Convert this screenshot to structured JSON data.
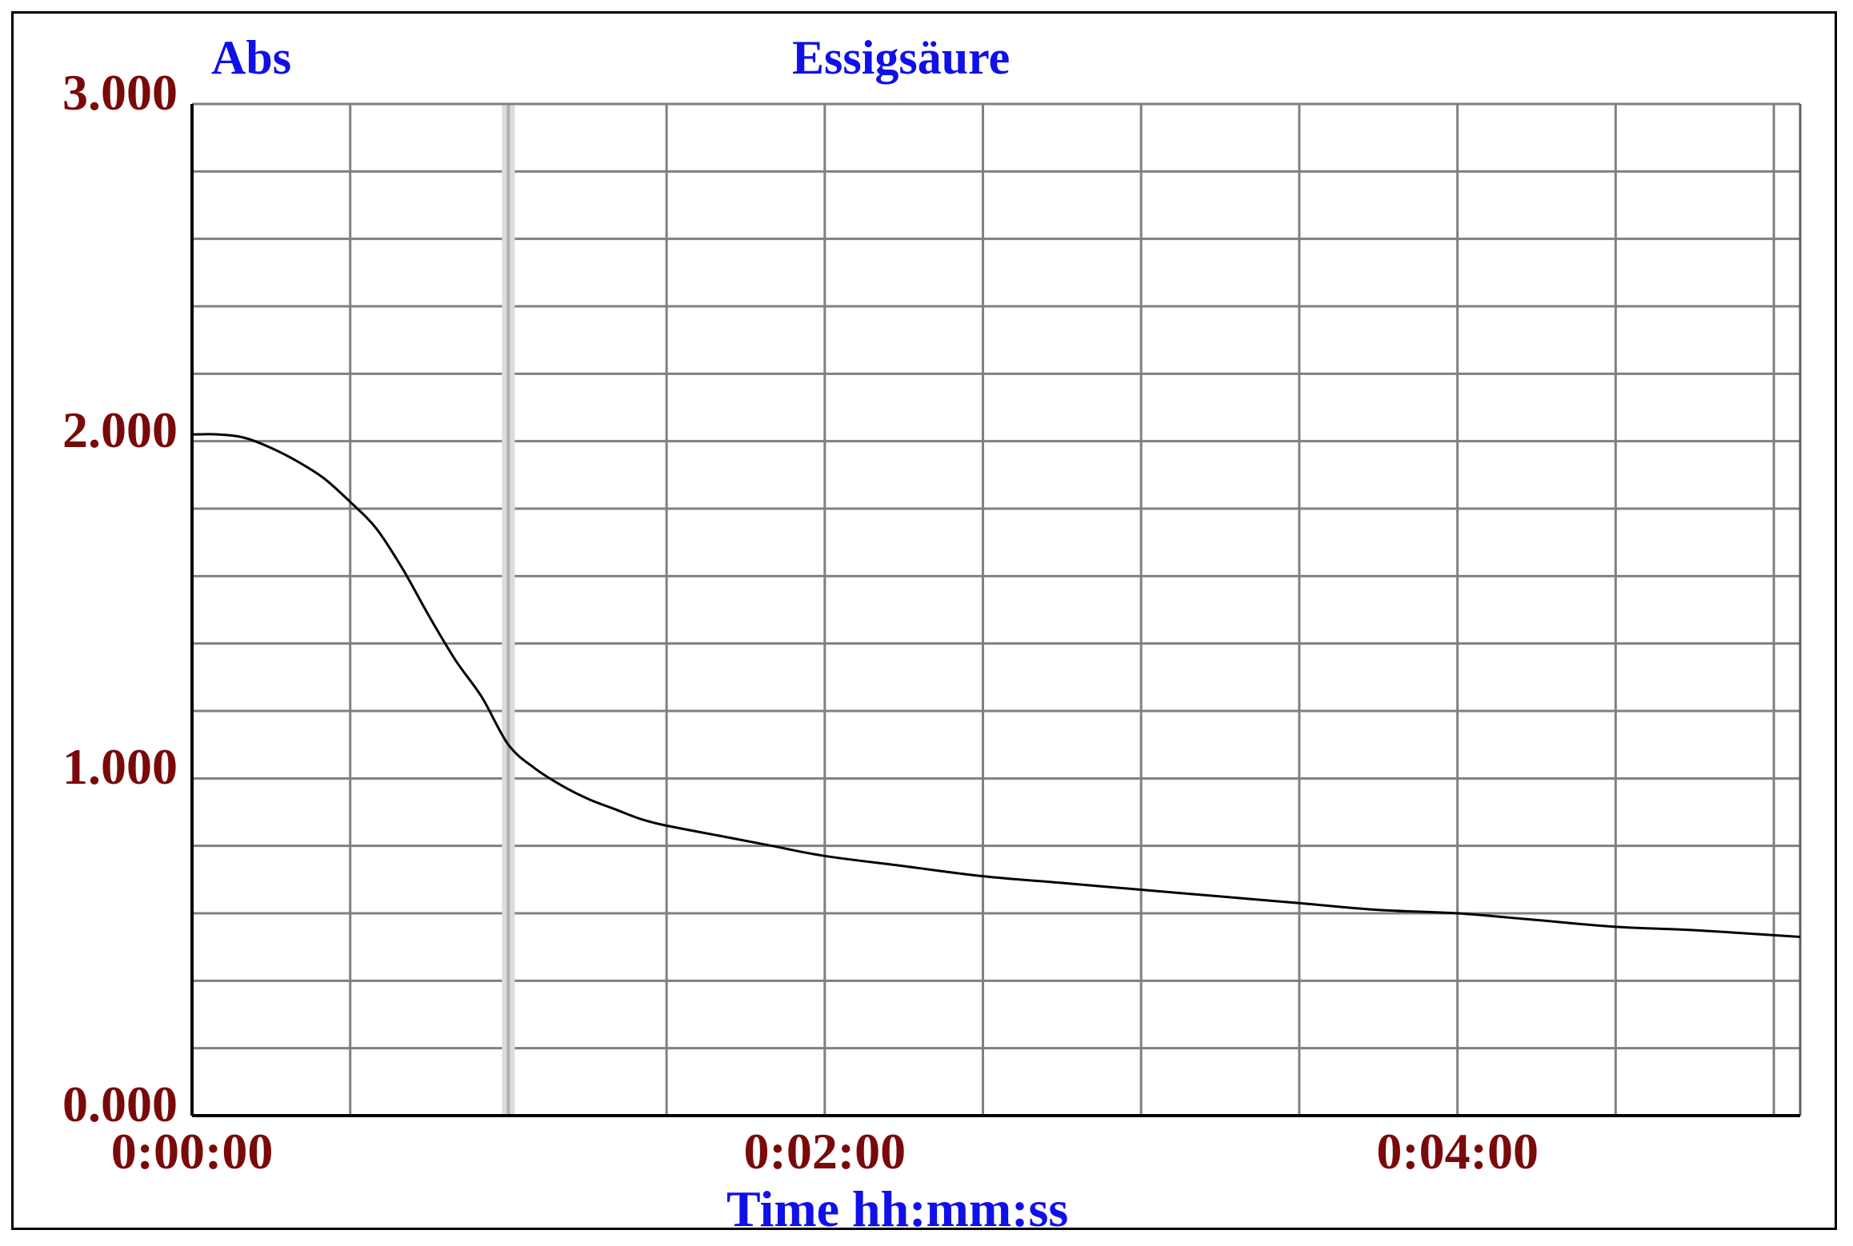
{
  "chart_data": {
    "type": "line",
    "title": "Essigsäure",
    "ylabel": "Abs",
    "xlabel": "Time hh:mm:ss",
    "ylim": [
      0,
      3
    ],
    "xlim_seconds": [
      0,
      305
    ],
    "x_ticks": [
      "0:00:00",
      "0:02:00",
      "0:04:00"
    ],
    "y_ticks": [
      "0.000",
      "1.000",
      "2.000",
      "3.000"
    ],
    "grid": true,
    "cursor_time": "0:01:00",
    "series": [
      {
        "color": "#000000",
        "x": [
          "0:00:00",
          "0:00:05",
          "0:00:10",
          "0:00:15",
          "0:00:20",
          "0:00:25",
          "0:00:30",
          "0:00:35",
          "0:00:40",
          "0:00:45",
          "0:00:50",
          "0:00:55",
          "0:01:00",
          "0:01:05",
          "0:01:10",
          "0:01:15",
          "0:01:20",
          "0:01:25",
          "0:01:30",
          "0:01:40",
          "0:01:50",
          "0:02:00",
          "0:02:15",
          "0:02:30",
          "0:02:45",
          "0:03:00",
          "0:03:15",
          "0:03:30",
          "0:03:45",
          "0:04:00",
          "0:04:15",
          "0:04:30",
          "0:04:45",
          "0:05:05"
        ],
        "y": [
          2.02,
          2.02,
          2.01,
          1.98,
          1.94,
          1.89,
          1.82,
          1.74,
          1.62,
          1.48,
          1.35,
          1.24,
          1.1,
          1.03,
          0.98,
          0.94,
          0.91,
          0.88,
          0.86,
          0.83,
          0.8,
          0.77,
          0.74,
          0.71,
          0.69,
          0.67,
          0.65,
          0.63,
          0.61,
          0.6,
          0.58,
          0.56,
          0.55,
          0.53
        ]
      }
    ]
  }
}
